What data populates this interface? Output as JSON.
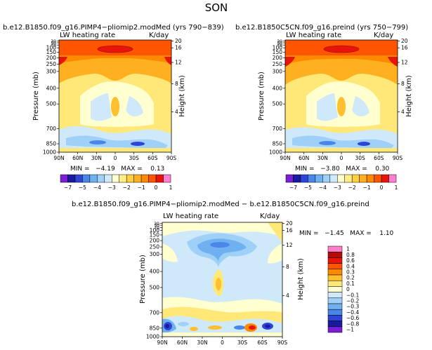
{
  "chart_data": {
    "type": "contour",
    "main_title": "SON",
    "panels": [
      {
        "id": "top-left",
        "title": "b.e12.B1850.f09_g16.PIMP4−pliomip2.modMed (yrs 790−839)",
        "left_string": "LW heating rate",
        "right_string": "K/day",
        "ylabel": "Pressure (mb)",
        "right_ylabel": "Height (km)",
        "stats": "MIN =   −4.19   MAX =    0.13",
        "min": -4.19,
        "max": 0.13
      },
      {
        "id": "top-right",
        "title": "b.e12.B1850C5CN.f09_g16.preind (yrs 750−799)",
        "left_string": "LW heating rate",
        "right_string": "K/day",
        "ylabel": "Pressure (mb)",
        "right_ylabel": "Height (km)",
        "stats": "MIN =   −3.80   MAX =    0.30",
        "min": -3.8,
        "max": 0.3
      },
      {
        "id": "bottom",
        "title": "b.e12.B1850.f09_g16.PIMP4−pliomip2.modMed  −  b.e12.B1850C5CN.f09_g16.preind",
        "left_string": "LW heating rate",
        "right_string": "K/day",
        "ylabel": "Pressure (mb)",
        "right_ylabel": "Height (km)",
        "stats": "MIN =   −1.45   MAX =    1.10",
        "min": -1.45,
        "max": 1.1
      }
    ],
    "x_ticks": [
      "90N",
      "60N",
      "30N",
      "0",
      "30S",
      "60S",
      "90S"
    ],
    "y_ticks": [
      "1000",
      "850",
      "700",
      "500",
      "400",
      "300",
      "250",
      "200",
      "150",
      "100",
      "70",
      "50",
      "30"
    ],
    "height_ticks": [
      "4",
      "8",
      "12",
      "16",
      "20"
    ],
    "top_colorbar": {
      "labels": [
        "−7",
        "−5",
        "−4",
        "−3",
        "−2",
        "−1",
        "0",
        "1"
      ],
      "colors": [
        "#7a1fd6",
        "#1a1aa0",
        "#2f44d6",
        "#4a86e8",
        "#6fb1f0",
        "#9fd0f7",
        "#cfe9fb",
        "#ffffd0",
        "#ffee88",
        "#ffd040",
        "#ffb020",
        "#ff8a00",
        "#ff5500",
        "#e8140a",
        "#ff7fd0"
      ]
    },
    "bottom_colorbar": {
      "labels": [
        "1",
        "0.8",
        "0.6",
        "0.4",
        "0.3",
        "0.2",
        "0.1",
        "0",
        "−0.1",
        "−0.2",
        "−0.3",
        "−0.4",
        "−0.6",
        "−0.8",
        "−1"
      ],
      "colors": [
        "#ff7fc8",
        "#b40a0a",
        "#e8140a",
        "#ff5500",
        "#ff8a00",
        "#ffc030",
        "#ffe878",
        "#ffffd0",
        "#cfe9fb",
        "#9fd0f7",
        "#6fb1f0",
        "#4a86e8",
        "#2f44d6",
        "#1a1aa0",
        "#7a1fd6"
      ]
    }
  }
}
